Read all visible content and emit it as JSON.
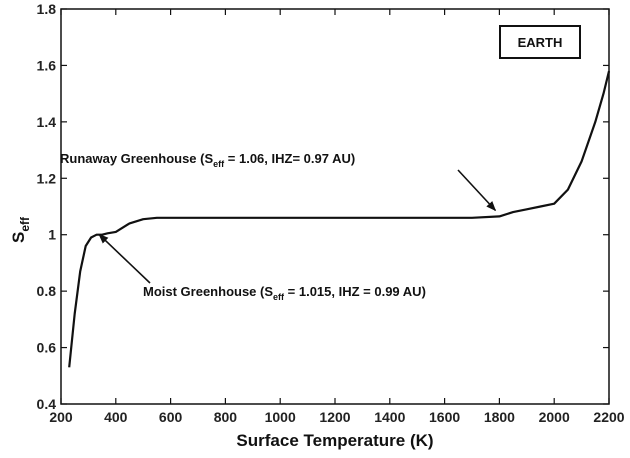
{
  "chart_data": {
    "type": "line",
    "xlabel": "Surface Temperature (K)",
    "ylabel": "S",
    "ylabel_sub": "eff",
    "xlim": [
      200,
      2200
    ],
    "ylim": [
      0.4,
      1.8
    ],
    "xticks": [
      200,
      400,
      600,
      800,
      1000,
      1200,
      1400,
      1600,
      1800,
      2000,
      2200
    ],
    "yticks": [
      "0.4",
      "0.6",
      "0.8",
      "1",
      "1.2",
      "1.4",
      "1.6",
      "1.8"
    ],
    "grid": false,
    "legend_box": "EARTH",
    "series": [
      {
        "x": [
          230,
          250,
          270,
          290,
          310,
          330,
          350,
          370,
          400,
          450,
          500,
          550,
          600,
          700,
          800,
          1000,
          1200,
          1400,
          1600,
          1700,
          1800,
          1850,
          1900,
          1950,
          2000,
          2050,
          2100,
          2150,
          2180,
          2200
        ],
        "y": [
          0.53,
          0.72,
          0.87,
          0.96,
          0.99,
          1.0,
          1.0,
          1.005,
          1.01,
          1.04,
          1.055,
          1.06,
          1.06,
          1.06,
          1.06,
          1.06,
          1.06,
          1.06,
          1.06,
          1.06,
          1.065,
          1.08,
          1.09,
          1.1,
          1.11,
          1.16,
          1.26,
          1.4,
          1.5,
          1.58
        ]
      }
    ],
    "annotations": [
      {
        "label_prefix": "Runaway Greenhouse (S",
        "label_sub": "eff",
        "label_suffix": " = 1.06,  IHZ= 0.97 AU)",
        "x": 1800,
        "y": 1.065
      },
      {
        "label_prefix": "Moist Greenhouse (S",
        "label_sub": "eff",
        "label_suffix": " = 1.015, IHZ = 0.99 AU)",
        "x": 350,
        "y": 1.015
      }
    ]
  }
}
